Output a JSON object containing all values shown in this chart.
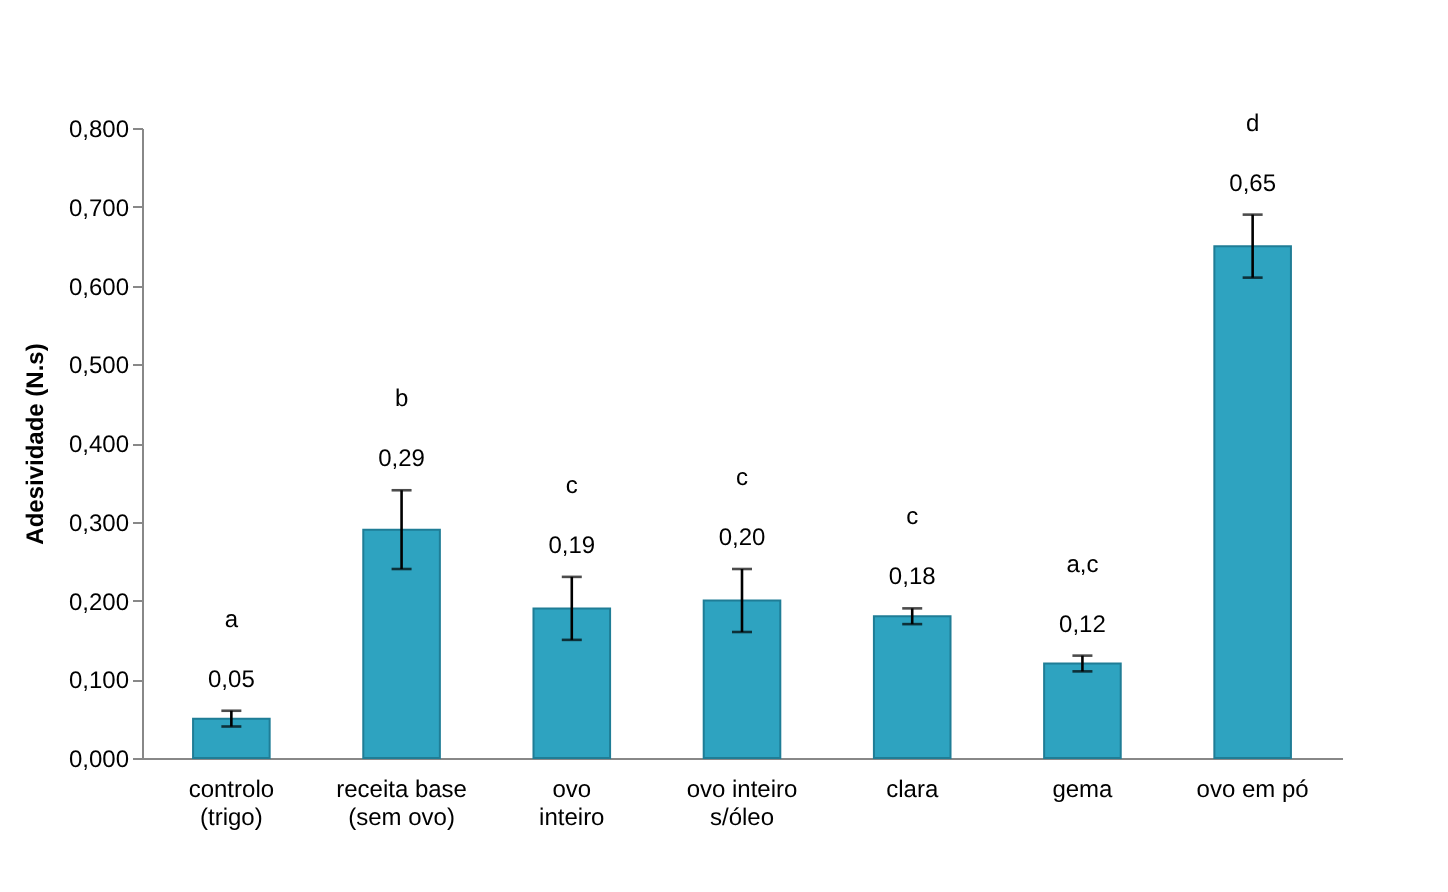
{
  "chart_data": {
    "type": "bar",
    "ylabel": "Adesividade (N.s)",
    "categories": [
      "controlo (trigo)",
      "receita base (sem ovo)",
      "ovo inteiro",
      "ovo inteiro s/óleo",
      "clara",
      "gema",
      "ovo em pó"
    ],
    "values": [
      0.05,
      0.29,
      0.19,
      0.2,
      0.18,
      0.12,
      0.65
    ],
    "value_labels": [
      "0,05",
      "0,29",
      "0,19",
      "0,20",
      "0,18",
      "0,12",
      "0,65"
    ],
    "errors": [
      0.01,
      0.05,
      0.04,
      0.04,
      0.01,
      0.01,
      0.04
    ],
    "color": "#2ea3c0",
    "annotations": [
      "a",
      "b",
      "c",
      "c",
      "c",
      "a,c",
      "d"
    ],
    "ylim": [
      0,
      0.8
    ],
    "yticks": [
      {
        "value": 0,
        "label": "0,000"
      },
      {
        "value": 0.1,
        "label": "0,100"
      },
      {
        "value": 0.2,
        "label": "0,200"
      },
      {
        "value": 0.3,
        "label": "0,300"
      },
      {
        "value": 0.4,
        "label": "0,400"
      },
      {
        "value": 0.5,
        "label": "0,500"
      },
      {
        "value": 0.6,
        "label": "0,600"
      },
      {
        "value": 0.7,
        "label": "0,700"
      },
      {
        "value": 0.8,
        "label": "0,800"
      }
    ],
    "grid": false
  }
}
